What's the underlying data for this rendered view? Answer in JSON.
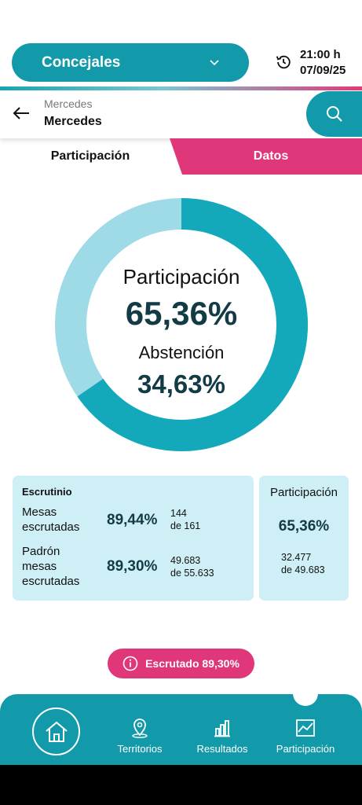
{
  "header": {
    "selector_label": "Concejales",
    "time": "21:00 h",
    "date": "07/09/25"
  },
  "search": {
    "small_label": "Mercedes",
    "value": "Mercedes"
  },
  "tabs": [
    {
      "label": "Participación",
      "active": true
    },
    {
      "label": "Datos",
      "active": false
    }
  ],
  "donut": {
    "participation_label": "Participación",
    "participation_value": "65,36%",
    "abstention_label": "Abstención",
    "abstention_value": "34,63%",
    "participation_fraction": 0.6536,
    "colors": {
      "participation": "#13a8ba",
      "abstention": "#9fdbe6"
    }
  },
  "scrutiny": {
    "title": "Escrutinio",
    "rows": [
      {
        "label_line1": "Mesas",
        "label_line2": "escrutadas",
        "label_line3": "",
        "pct": "89,44%",
        "detail_top": "144",
        "detail_bottom": "de 161"
      },
      {
        "label_line1": "Padrón",
        "label_line2": "mesas",
        "label_line3": "escrutadas",
        "pct": "89,30%",
        "detail_top": "49.683",
        "detail_bottom": "de 55.633"
      }
    ]
  },
  "participation_card": {
    "title": "Participación",
    "pct": "65,36%",
    "detail_top": "32.477",
    "detail_bottom": "de 49.683"
  },
  "status_pill": {
    "icon": "info-icon",
    "label": "Escrutado 89,30%"
  },
  "bottom_nav": {
    "items": [
      {
        "label": "Territorios",
        "icon": "location-pin-icon"
      },
      {
        "label": "Resultados",
        "icon": "bar-chart-icon"
      },
      {
        "label": "Participación",
        "icon": "line-chart-icon"
      }
    ],
    "home_icon": "home-icon"
  },
  "colors": {
    "primary": "#139aaa",
    "accent": "#e0377a",
    "card_bg": "#cfeff7"
  }
}
